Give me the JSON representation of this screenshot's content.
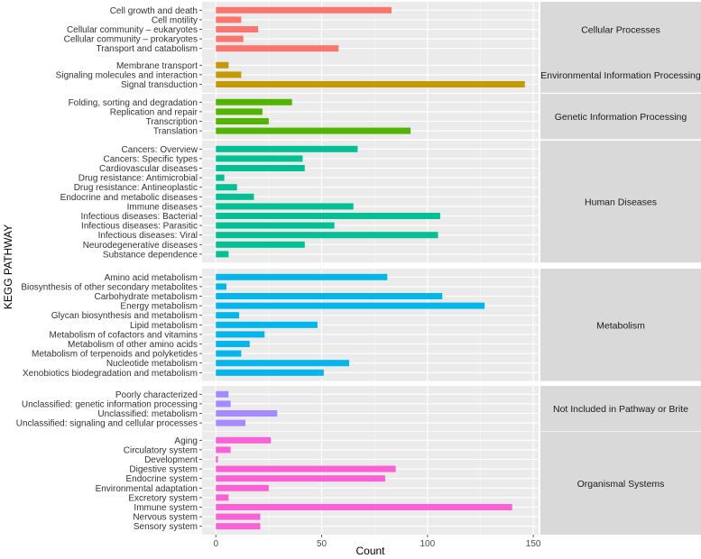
{
  "chart_data": {
    "type": "bar",
    "orientation": "horizontal",
    "xlabel": "Count",
    "ylabel": "KEGG PATHWAY",
    "xlim": [
      0,
      150
    ],
    "xticks": [
      0,
      50,
      100,
      150
    ],
    "grid": true,
    "panels": [
      {
        "name": "Cellular Processes",
        "color": "#F8766D",
        "categories": [
          "Cell growth and death",
          "Cell motility",
          "Cellular community – eukaryotes",
          "Cellular community – prokaryotes",
          "Transport and catabolism"
        ],
        "values": [
          83,
          12,
          20,
          13,
          58
        ]
      },
      {
        "name": "Environmental Information Processing",
        "color": "#C49A00",
        "categories": [
          "Membrane transport",
          "Signaling molecules and interaction",
          "Signal transduction"
        ],
        "values": [
          6,
          12,
          146
        ]
      },
      {
        "name": "Genetic Information Processing",
        "color": "#53B400",
        "categories": [
          "Folding, sorting and degradation",
          "Replication and repair",
          "Transcription",
          "Translation"
        ],
        "values": [
          36,
          22,
          25,
          92
        ]
      },
      {
        "name": "Human Diseases",
        "color": "#00C094",
        "categories": [
          "Cancers: Overview",
          "Cancers: Specific types",
          "Cardiovascular diseases",
          "Drug resistance: Antimicrobial",
          "Drug resistance: Antineoplastic",
          "Endocrine and metabolic diseases",
          "Immune diseases",
          "Infectious diseases: Bacterial",
          "Infectious diseases: Parasitic",
          "Infectious diseases: Viral",
          "Neurodegenerative diseases",
          "Substance dependence"
        ],
        "values": [
          67,
          41,
          42,
          4,
          10,
          18,
          65,
          106,
          56,
          105,
          42,
          6
        ]
      },
      {
        "name": "Metabolism",
        "color": "#00B6EB",
        "categories": [
          "Amino acid metabolism",
          "Biosynthesis of other secondary metabolites",
          "Carbohydrate metabolism",
          "Energy metabolism",
          "Glycan biosynthesis and metabolism",
          "Lipid metabolism",
          "Metabolism of cofactors and vitamins",
          "Metabolism of other amino acids",
          "Metabolism of terpenoids and polyketides",
          "Nucleotide metabolism",
          "Xenobiotics biodegradation and metabolism"
        ],
        "values": [
          81,
          5,
          107,
          127,
          11,
          48,
          23,
          16,
          12,
          63,
          51
        ]
      },
      {
        "name": "Not Included in Pathway or Brite",
        "color": "#A58AFF",
        "categories": [
          "Poorly characterized",
          "Unclassified: genetic information processing",
          "Unclassified: metabolism",
          "Unclassified: signaling and cellular processes"
        ],
        "values": [
          6,
          7,
          29,
          14
        ]
      },
      {
        "name": "Organismal Systems",
        "color": "#FB61D7",
        "categories": [
          "Aging",
          "Circulatory system",
          "Development",
          "Digestive system",
          "Endocrine system",
          "Environmental adaptation",
          "Excretory system",
          "Immune system",
          "Nervous system",
          "Sensory system"
        ],
        "values": [
          26,
          7,
          1,
          85,
          80,
          25,
          6,
          140,
          21,
          21
        ]
      }
    ]
  }
}
